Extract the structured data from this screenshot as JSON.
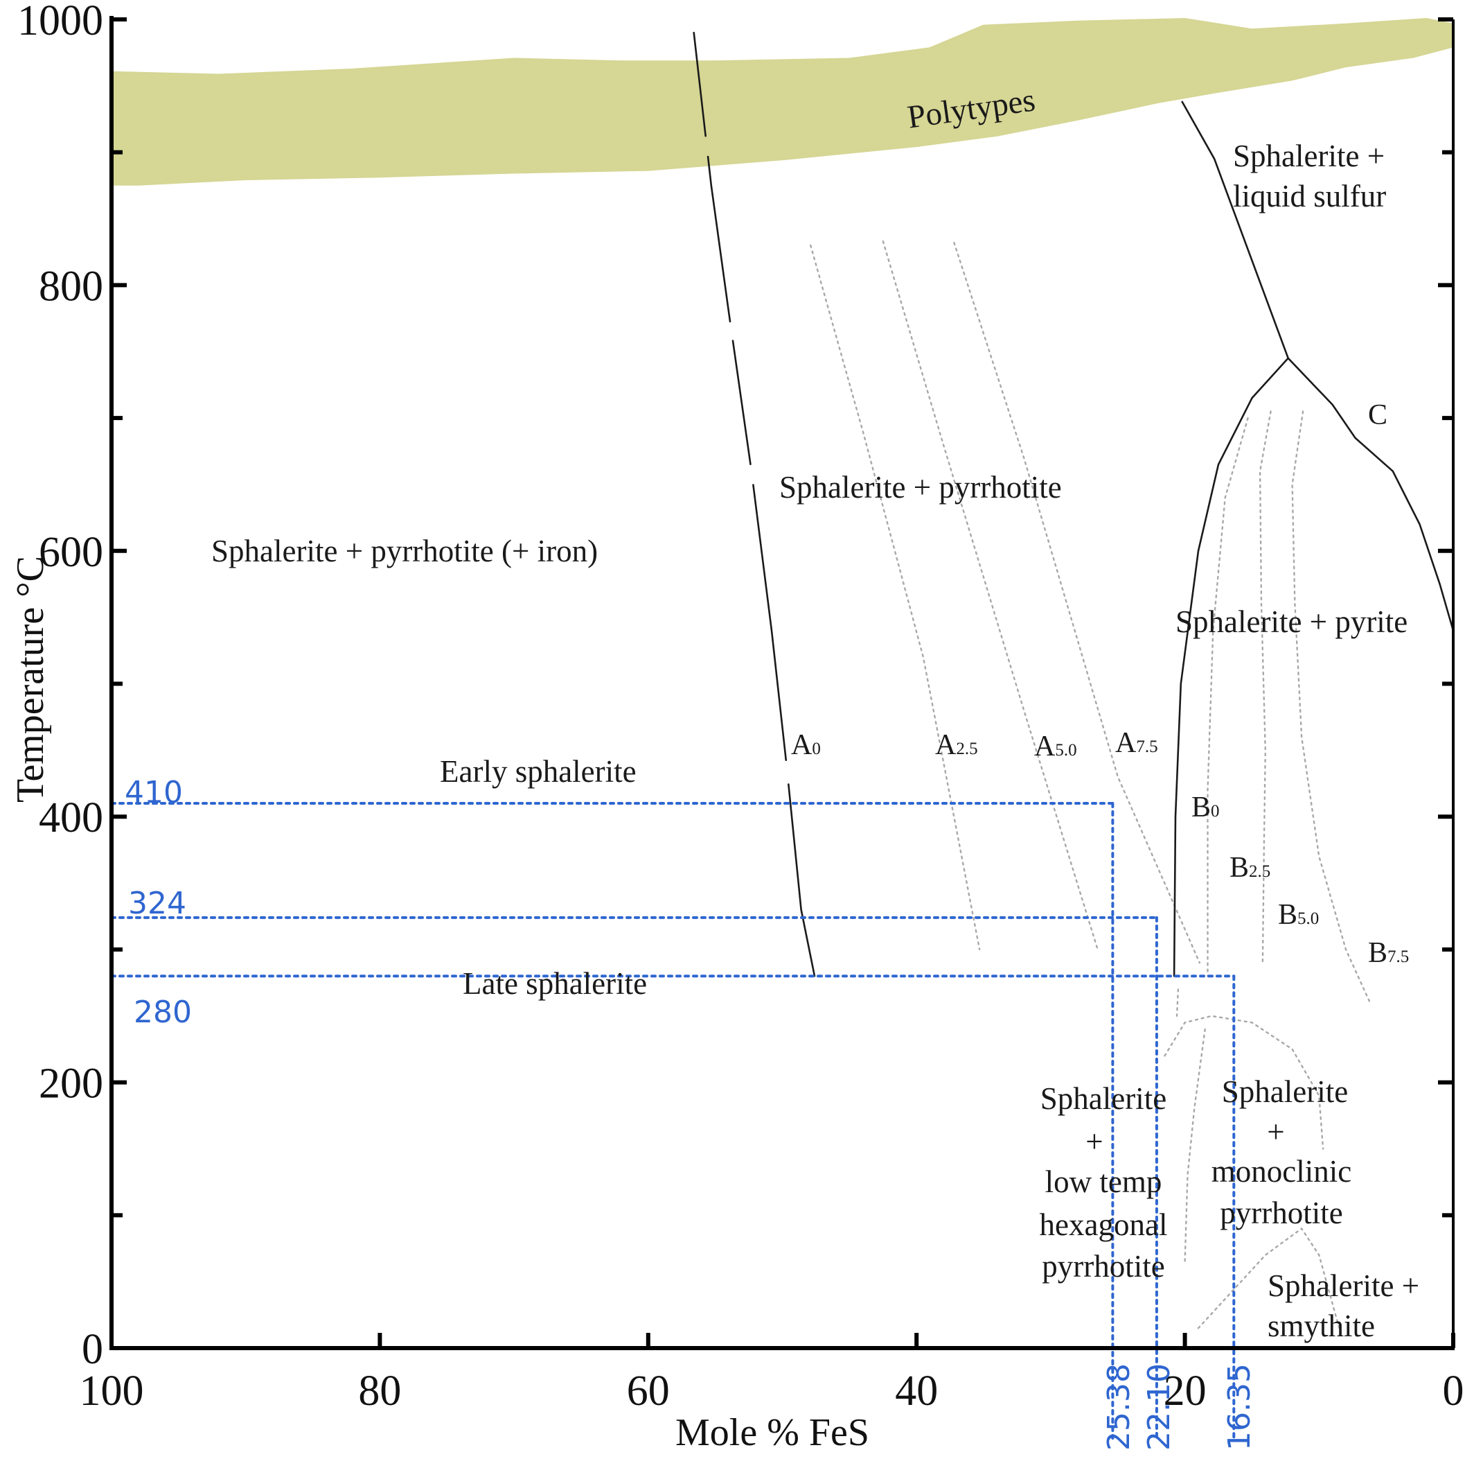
{
  "chart_data": {
    "type": "line",
    "title": "",
    "xlabel": "Mole % FeS",
    "ylabel": "Temperature °C",
    "xlim": [
      100,
      0
    ],
    "ylim": [
      0,
      1000
    ],
    "x_ticks": [
      100,
      80,
      60,
      40,
      20,
      0
    ],
    "y_ticks": [
      0,
      200,
      400,
      600,
      800,
      1000
    ],
    "grid": false,
    "band": {
      "name": "Polytypes",
      "color": "#d6d695",
      "upper": [
        [
          100,
          960
        ],
        [
          92,
          958
        ],
        [
          82,
          962
        ],
        [
          70,
          970
        ],
        [
          62,
          968
        ],
        [
          55,
          968
        ],
        [
          45,
          970
        ],
        [
          39,
          978
        ],
        [
          35,
          995
        ],
        [
          28,
          998
        ],
        [
          20,
          1000
        ],
        [
          15,
          992
        ],
        [
          8,
          996
        ],
        [
          2,
          1000
        ],
        [
          0,
          996
        ]
      ],
      "lower": [
        [
          0,
          980
        ],
        [
          3,
          972
        ],
        [
          8,
          965
        ],
        [
          12,
          955
        ],
        [
          18,
          945
        ],
        [
          22,
          938
        ],
        [
          28,
          925
        ],
        [
          34,
          913
        ],
        [
          40,
          905
        ],
        [
          50,
          895
        ],
        [
          60,
          887
        ],
        [
          70,
          885
        ],
        [
          80,
          882
        ],
        [
          90,
          880
        ],
        [
          98,
          876
        ],
        [
          100,
          876
        ]
      ]
    },
    "series": [
      {
        "name": "A0",
        "style": "dashed-solid",
        "color": "#1a1a1a",
        "points": [
          [
            56.6,
            990
          ],
          [
            55.3,
            875
          ],
          [
            54,
            780
          ],
          [
            52.3,
            660
          ],
          [
            50.8,
            540
          ],
          [
            49.7,
            440
          ],
          [
            48.6,
            330
          ],
          [
            47.6,
            280
          ]
        ]
      },
      {
        "name": "A2.5",
        "style": "dotted",
        "color": "#a8a8a8",
        "points": [
          [
            47.9,
            830
          ],
          [
            44,
            690
          ],
          [
            39.5,
            520
          ],
          [
            35.3,
            300
          ]
        ]
      },
      {
        "name": "A5.0",
        "style": "dotted",
        "color": "#a8a8a8",
        "points": [
          [
            42.5,
            833
          ],
          [
            38,
            680
          ],
          [
            32,
            480
          ],
          [
            26.5,
            300
          ]
        ]
      },
      {
        "name": "A7.5",
        "style": "dotted",
        "color": "#a8a8a8",
        "points": [
          [
            37.2,
            832
          ],
          [
            32,
            670
          ],
          [
            25,
            430
          ],
          [
            18.9,
            290
          ]
        ]
      },
      {
        "name": "C",
        "style": "solid",
        "color": "#1a1a1a",
        "points": [
          [
            20.2,
            938
          ],
          [
            17.8,
            895
          ],
          [
            12.3,
            745
          ],
          [
            9,
            710
          ],
          [
            7.3,
            685
          ],
          [
            4.5,
            660
          ],
          [
            2.5,
            620
          ],
          [
            1,
            575
          ],
          [
            0,
            540
          ]
        ]
      },
      {
        "name": "B0",
        "style": "solid",
        "color": "#1a1a1a",
        "points": [
          [
            12.3,
            745
          ],
          [
            15,
            715
          ],
          [
            17.5,
            665
          ],
          [
            19,
            600
          ],
          [
            20.3,
            500
          ],
          [
            20.7,
            400
          ],
          [
            20.8,
            280
          ]
        ]
      },
      {
        "name": "B2.5",
        "style": "dotted",
        "color": "#a8a8a8",
        "points": [
          [
            15.3,
            700
          ],
          [
            17,
            640
          ],
          [
            17.9,
            540
          ],
          [
            18.3,
            420
          ],
          [
            18.3,
            280
          ]
        ]
      },
      {
        "name": "B5.0",
        "style": "dotted",
        "color": "#a8a8a8",
        "points": [
          [
            13.6,
            705
          ],
          [
            14.4,
            660
          ],
          [
            14.3,
            560
          ],
          [
            14,
            450
          ],
          [
            14.1,
            380
          ],
          [
            14.2,
            290
          ]
        ]
      },
      {
        "name": "B7.5",
        "style": "dotted",
        "color": "#a8a8a8",
        "points": [
          [
            11.2,
            705
          ],
          [
            12,
            650
          ],
          [
            11.8,
            560
          ],
          [
            11.3,
            460
          ],
          [
            10,
            370
          ],
          [
            8,
            300
          ],
          [
            6.2,
            260
          ]
        ]
      },
      {
        "name": "",
        "style": "dotted",
        "color": "#a8a8a8",
        "points": [
          [
            21.5,
            220
          ],
          [
            20,
            245
          ],
          [
            18,
            250
          ],
          [
            15,
            245
          ],
          [
            12,
            225
          ],
          [
            10,
            190
          ],
          [
            9.7,
            150
          ]
        ]
      },
      {
        "name": "",
        "style": "dotted",
        "color": "#a8a8a8",
        "points": [
          [
            18.5,
            240
          ],
          [
            19.3,
            180
          ],
          [
            19.8,
            130
          ],
          [
            20,
            65
          ]
        ]
      },
      {
        "name": "",
        "style": "dotted",
        "color": "#a8a8a8",
        "points": [
          [
            20.5,
            270
          ],
          [
            20.6,
            250
          ]
        ]
      },
      {
        "name": "",
        "style": "dotted",
        "color": "#a8a8a8",
        "points": [
          [
            19,
            15
          ],
          [
            14,
            70
          ],
          [
            11.3,
            90
          ],
          [
            10,
            70
          ],
          [
            8.5,
            15
          ]
        ]
      }
    ],
    "reference_lines": [
      {
        "temperature": 410,
        "fes": 25.38,
        "color": "#2f66d0"
      },
      {
        "temperature": 324,
        "fes": 22.1,
        "color": "#2f66d0"
      },
      {
        "temperature": 280,
        "fes": 16.35,
        "color": "#2f66d0"
      }
    ],
    "annotations": {
      "polytypes": "Polytypes",
      "liquid_sulfur_1": "Sphalerite +",
      "liquid_sulfur_2": "liquid sulfur",
      "po_iron": "Sphalerite + pyrrhotite (+ iron)",
      "sp_po": "Sphalerite + pyrrhotite",
      "sp_py": "Sphalerite + pyrite",
      "early": "Early sphalerite",
      "late": "Late sphalerite",
      "hex_1": "Sphalerite",
      "hex_2": "+",
      "hex_3": "low temp",
      "hex_4": "hexagonal",
      "hex_5": "pyrrhotite",
      "mono_1": "Sphalerite",
      "mono_2": "+",
      "mono_3": "monoclinic",
      "mono_4": "pyrrhotite",
      "smy_1": "Sphalerite +",
      "smy_2": "smythite",
      "label_C": "C",
      "A0_main": "A",
      "A0_sub": "0",
      "A25_main": "A",
      "A25_sub": "2.5",
      "A50_main": "A",
      "A50_sub": "5.0",
      "A75_main": "A",
      "A75_sub": "7.5",
      "B0_main": "B",
      "B0_sub": "0",
      "B25_main": "B",
      "B25_sub": "2.5",
      "B50_main": "B",
      "B50_sub": "5.0",
      "B75_main": "B",
      "B75_sub": "7.5",
      "t410": "410",
      "t324": "324",
      "t280": "280",
      "x2538": "25.38",
      "x2210": "22.10",
      "x1635": "16.35"
    }
  }
}
